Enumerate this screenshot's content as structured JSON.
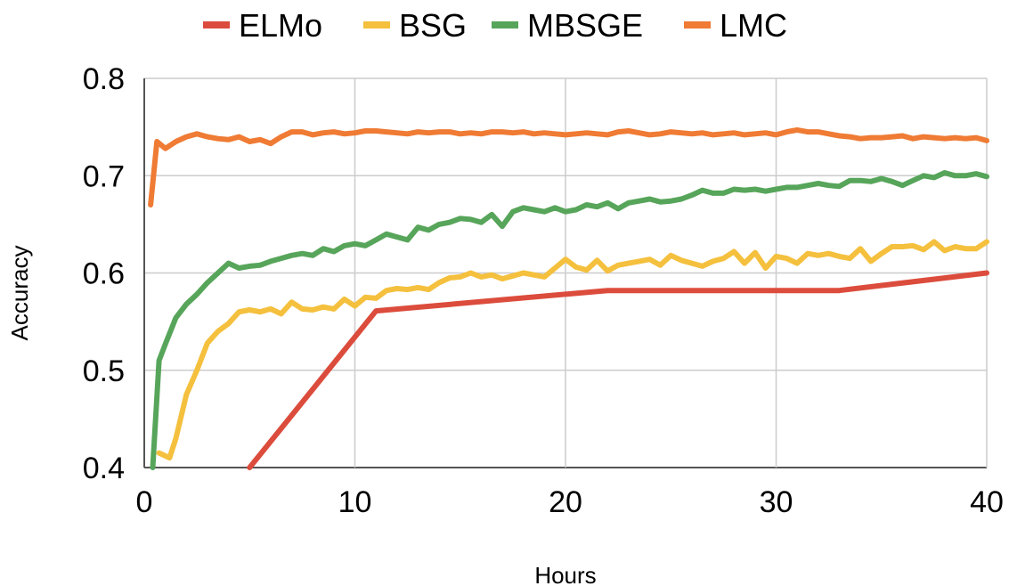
{
  "chart_data": {
    "type": "line",
    "title": "",
    "xlabel": "Hours",
    "ylabel": "Accuracy",
    "xlim": [
      0,
      40
    ],
    "ylim": [
      0.4,
      0.8
    ],
    "xticks": [
      "0",
      "10",
      "20",
      "30",
      "40"
    ],
    "yticks": [
      "0.4",
      "0.5",
      "0.6",
      "0.7",
      "0.8"
    ],
    "grid": true,
    "legend_position": "top",
    "series": [
      {
        "name": "ELMo",
        "color": "#dc4c3c",
        "x": [
          5,
          11,
          22,
          33,
          40
        ],
        "y": [
          0.4,
          0.561,
          0.582,
          0.582,
          0.6
        ]
      },
      {
        "name": "BSG",
        "color": "#f4c03d",
        "x": [
          0.7,
          1.2,
          1.5,
          2,
          2.5,
          3,
          3.5,
          4,
          4.5,
          5,
          5.5,
          6,
          6.5,
          7,
          7.5,
          8,
          8.5,
          9,
          9.5,
          10,
          10.5,
          11,
          11.5,
          12,
          12.5,
          13,
          13.5,
          14,
          14.5,
          15,
          15.5,
          16,
          16.5,
          17,
          17.5,
          18,
          18.5,
          19,
          19.5,
          20,
          20.5,
          21,
          21.5,
          22,
          22.5,
          23,
          23.5,
          24,
          24.5,
          25,
          25.5,
          26,
          26.5,
          27,
          27.5,
          28,
          28.5,
          29,
          29.5,
          30,
          30.5,
          31,
          31.5,
          32,
          32.5,
          33,
          33.5,
          34,
          34.5,
          35,
          35.5,
          36,
          36.5,
          37,
          37.5,
          38,
          38.5,
          39,
          39.5,
          40
        ],
        "y": [
          0.415,
          0.41,
          0.43,
          0.475,
          0.5,
          0.528,
          0.54,
          0.548,
          0.56,
          0.562,
          0.56,
          0.563,
          0.558,
          0.57,
          0.563,
          0.562,
          0.565,
          0.563,
          0.573,
          0.566,
          0.575,
          0.574,
          0.582,
          0.584,
          0.583,
          0.585,
          0.583,
          0.59,
          0.595,
          0.596,
          0.6,
          0.596,
          0.598,
          0.594,
          0.597,
          0.6,
          0.598,
          0.596,
          0.605,
          0.614,
          0.606,
          0.603,
          0.613,
          0.602,
          0.608,
          0.61,
          0.612,
          0.614,
          0.608,
          0.618,
          0.613,
          0.61,
          0.607,
          0.612,
          0.615,
          0.622,
          0.61,
          0.621,
          0.605,
          0.617,
          0.615,
          0.61,
          0.62,
          0.618,
          0.62,
          0.617,
          0.615,
          0.625,
          0.612,
          0.62,
          0.627,
          0.627,
          0.628,
          0.624,
          0.632,
          0.623,
          0.627,
          0.625,
          0.625,
          0.632
        ]
      },
      {
        "name": "MBSGE",
        "color": "#57a55a",
        "x": [
          0.4,
          0.7,
          1,
          1.5,
          2,
          2.5,
          3,
          3.5,
          4,
          4.5,
          5,
          5.5,
          6,
          6.5,
          7,
          7.5,
          8,
          8.5,
          9,
          9.5,
          10,
          10.5,
          11,
          11.5,
          12,
          12.5,
          13,
          13.5,
          14,
          14.5,
          15,
          15.5,
          16,
          16.5,
          17,
          17.5,
          18,
          18.5,
          19,
          19.5,
          20,
          20.5,
          21,
          21.5,
          22,
          22.5,
          23,
          23.5,
          24,
          24.5,
          25,
          25.5,
          26,
          26.5,
          27,
          27.5,
          28,
          28.5,
          29,
          29.5,
          30,
          30.5,
          31,
          31.5,
          32,
          32.5,
          33,
          33.5,
          34,
          34.5,
          35,
          35.5,
          36,
          36.5,
          37,
          37.5,
          38,
          38.5,
          39,
          39.5,
          40
        ],
        "y": [
          0.4,
          0.51,
          0.527,
          0.554,
          0.568,
          0.578,
          0.59,
          0.6,
          0.61,
          0.605,
          0.607,
          0.608,
          0.612,
          0.615,
          0.618,
          0.62,
          0.618,
          0.625,
          0.622,
          0.628,
          0.63,
          0.628,
          0.634,
          0.64,
          0.637,
          0.634,
          0.647,
          0.644,
          0.65,
          0.652,
          0.656,
          0.655,
          0.652,
          0.66,
          0.648,
          0.663,
          0.667,
          0.665,
          0.663,
          0.667,
          0.663,
          0.665,
          0.67,
          0.668,
          0.672,
          0.666,
          0.672,
          0.674,
          0.676,
          0.673,
          0.674,
          0.676,
          0.68,
          0.685,
          0.682,
          0.682,
          0.686,
          0.685,
          0.686,
          0.684,
          0.686,
          0.688,
          0.688,
          0.69,
          0.692,
          0.69,
          0.689,
          0.695,
          0.695,
          0.694,
          0.697,
          0.694,
          0.69,
          0.695,
          0.7,
          0.698,
          0.703,
          0.7,
          0.7,
          0.702,
          0.699
        ]
      },
      {
        "name": "LMC",
        "color": "#ef7b34",
        "x": [
          0.3,
          0.6,
          1,
          1.5,
          2,
          2.5,
          3,
          3.5,
          4,
          4.5,
          5,
          5.5,
          6,
          6.5,
          7,
          7.5,
          8,
          8.5,
          9,
          9.5,
          10,
          10.5,
          11,
          11.5,
          12,
          12.5,
          13,
          13.5,
          14,
          14.5,
          15,
          15.5,
          16,
          16.5,
          17,
          17.5,
          18,
          18.5,
          19,
          19.5,
          20,
          20.5,
          21,
          21.5,
          22,
          22.5,
          23,
          23.5,
          24,
          24.5,
          25,
          25.5,
          26,
          26.5,
          27,
          27.5,
          28,
          28.5,
          29,
          29.5,
          30,
          30.5,
          31,
          31.5,
          32,
          32.5,
          33,
          33.5,
          34,
          34.5,
          35,
          35.5,
          36,
          36.5,
          37,
          37.5,
          38,
          38.5,
          39,
          39.5,
          40
        ],
        "y": [
          0.67,
          0.735,
          0.728,
          0.735,
          0.74,
          0.743,
          0.74,
          0.738,
          0.737,
          0.74,
          0.735,
          0.737,
          0.733,
          0.74,
          0.745,
          0.745,
          0.742,
          0.744,
          0.745,
          0.743,
          0.744,
          0.746,
          0.746,
          0.745,
          0.744,
          0.743,
          0.745,
          0.744,
          0.745,
          0.745,
          0.743,
          0.744,
          0.743,
          0.745,
          0.745,
          0.744,
          0.745,
          0.743,
          0.744,
          0.743,
          0.742,
          0.743,
          0.744,
          0.743,
          0.742,
          0.745,
          0.746,
          0.744,
          0.742,
          0.743,
          0.745,
          0.744,
          0.743,
          0.744,
          0.742,
          0.743,
          0.744,
          0.742,
          0.743,
          0.744,
          0.742,
          0.745,
          0.747,
          0.745,
          0.745,
          0.743,
          0.741,
          0.74,
          0.738,
          0.739,
          0.739,
          0.74,
          0.741,
          0.738,
          0.74,
          0.739,
          0.738,
          0.739,
          0.738,
          0.739,
          0.736
        ]
      }
    ]
  }
}
